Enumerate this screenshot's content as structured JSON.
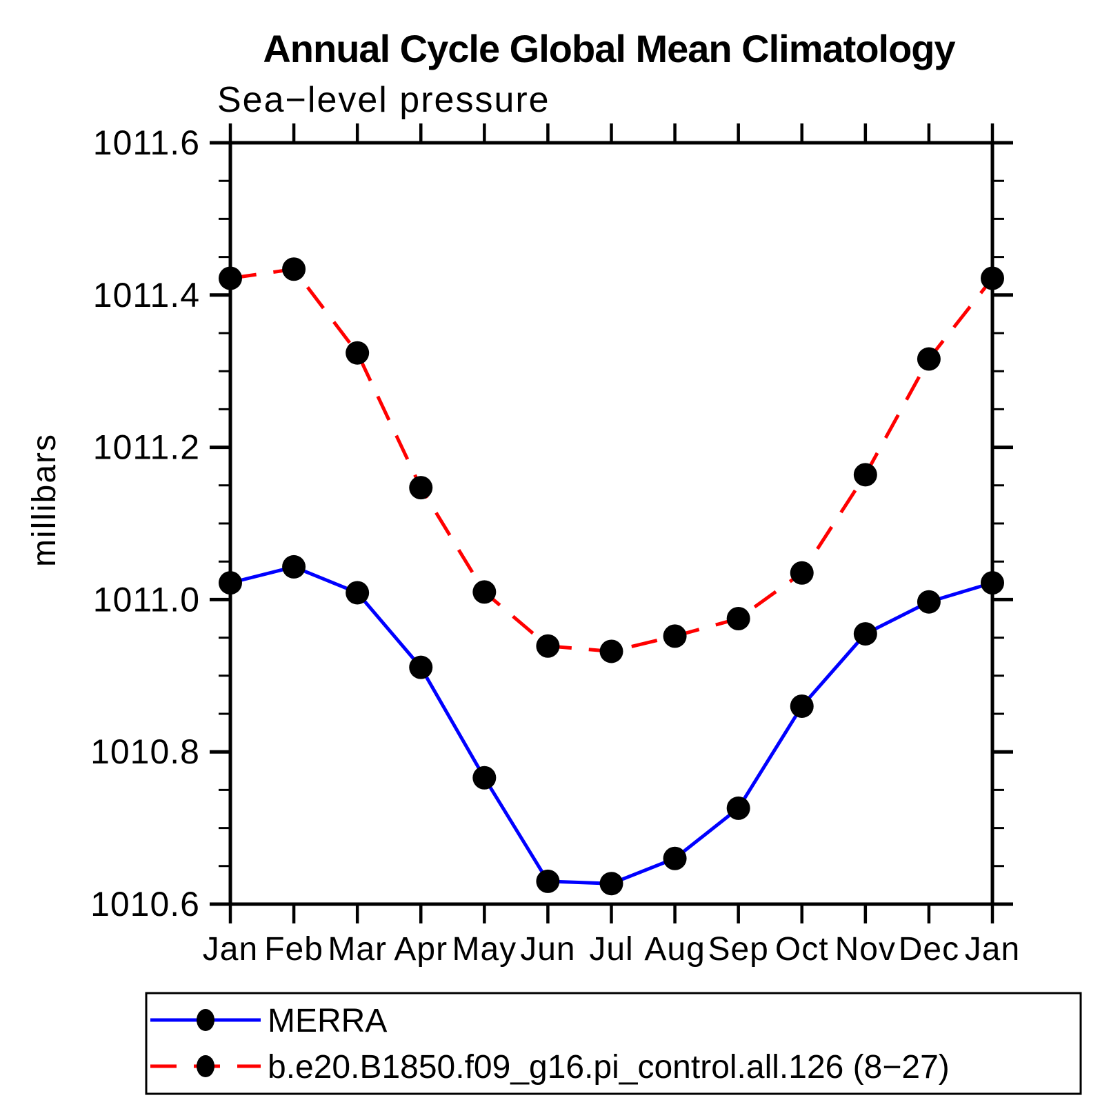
{
  "chart_data": {
    "type": "line",
    "title": "Annual Cycle Global Mean Climatology",
    "subtitle": "Sea−level pressure",
    "ylabel": "millibars",
    "xlabel": "",
    "categories": [
      "Jan",
      "Feb",
      "Mar",
      "Apr",
      "May",
      "Jun",
      "Jul",
      "Aug",
      "Sep",
      "Oct",
      "Nov",
      "Dec",
      "Jan"
    ],
    "series": [
      {
        "name": "MERRA",
        "color": "#0000ff",
        "line_style": "solid",
        "marker": "filled-circle",
        "marker_color": "#000000",
        "values": [
          1011.022,
          1011.043,
          1011.009,
          1010.911,
          1010.766,
          1010.63,
          1010.627,
          1010.66,
          1010.726,
          1010.86,
          1010.955,
          1010.997,
          1011.022
        ]
      },
      {
        "name": "b.e20.B1850.f09_g16.pi_control.all.126 (8−27)",
        "color": "#ff0000",
        "line_style": "dashed",
        "marker": "filled-circle",
        "marker_color": "#000000",
        "values": [
          1011.422,
          1011.434,
          1011.324,
          1011.147,
          1011.01,
          1010.939,
          1010.932,
          1010.952,
          1010.975,
          1011.035,
          1011.164,
          1011.316,
          1011.422
        ]
      }
    ],
    "ylim": [
      1010.6,
      1011.6
    ],
    "ytick_major_step": 0.2,
    "ytick_minor_step": 0.05,
    "ytick_labels": [
      "1010.6",
      "1010.8",
      "1011.0",
      "1011.2",
      "1011.4",
      "1011.6"
    ],
    "grid": false,
    "axis_color": "#000000",
    "legend_position": "bottom-left"
  }
}
